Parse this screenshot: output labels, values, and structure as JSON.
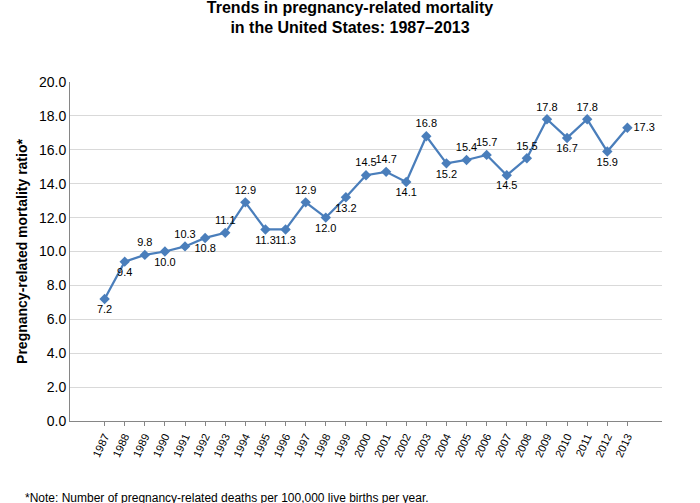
{
  "chart_data": {
    "type": "line",
    "title": "Trends in pregnancy-related mortality\nin the United States: 1987–2013",
    "y_label": "Pregnancy-related mortality ratio*",
    "note": "*Note: Number of pregnancy-related deaths per 100,000 live births per year.",
    "categories": [
      "1987",
      "1988",
      "1989",
      "1990",
      "1991",
      "1992",
      "1993",
      "1994",
      "1995",
      "1996",
      "1997",
      "1998",
      "1999",
      "2000",
      "2001",
      "2002",
      "2003",
      "2004",
      "2005",
      "2006",
      "2007",
      "2008",
      "2009",
      "2010",
      "2011",
      "2012",
      "2013"
    ],
    "values": [
      7.2,
      9.4,
      9.8,
      10.0,
      10.3,
      10.8,
      11.1,
      12.9,
      11.3,
      11.3,
      12.9,
      12.0,
      13.2,
      14.5,
      14.7,
      14.1,
      16.8,
      15.2,
      15.4,
      15.7,
      14.5,
      15.5,
      17.8,
      16.7,
      17.8,
      15.9,
      17.3
    ],
    "value_labels": [
      "7.2",
      "9.4",
      "9.8",
      "10.0",
      "10.3",
      "10.8",
      "11.1",
      "12.9",
      "11.3",
      "11.3",
      "12.9",
      "12.0",
      "13.2",
      "14.5",
      "14.7",
      "14.1",
      "16.8",
      "15.2",
      "15.4",
      "15.7",
      "14.5",
      "15.5",
      "17.8",
      "16.7",
      "17.8",
      "15.9",
      "17.3"
    ],
    "data_labels": true,
    "color": "#4a7ebb",
    "marker": "diamond",
    "line_style": "solid",
    "ylim": [
      0,
      20
    ],
    "yticks": [
      {
        "value": 0,
        "label": "0.0"
      },
      {
        "value": 2,
        "label": "2.0"
      },
      {
        "value": 4,
        "label": "4.0"
      },
      {
        "value": 6,
        "label": "6.0"
      },
      {
        "value": 8,
        "label": "8.0"
      },
      {
        "value": 10,
        "label": "10.0"
      },
      {
        "value": 12,
        "label": "12.0"
      },
      {
        "value": 14,
        "label": "14.0"
      },
      {
        "value": 16,
        "label": "16.0"
      },
      {
        "value": 18,
        "label": "18.0"
      },
      {
        "value": 20,
        "label": "20.0"
      }
    ],
    "grid": true
  }
}
